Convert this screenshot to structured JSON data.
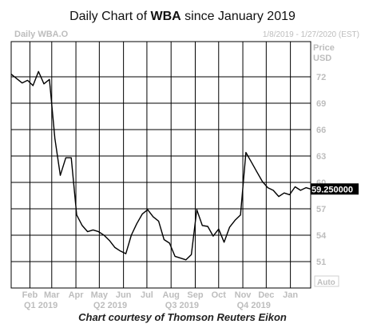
{
  "title": {
    "prefix": "Daily Chart of ",
    "ticker": "WBA",
    "suffix": " since January 2019"
  },
  "caption": "Chart courtesy of Thomson Reuters Eikon",
  "chart_data": {
    "type": "line",
    "header_left": "Daily WBA.O",
    "header_right": "1/8/2019 - 1/27/2020 (EST)",
    "ylabel": "Price",
    "yunit": "USD",
    "scale_mode": "Auto",
    "last_price_label": "59.250000",
    "ylim": [
      48.0,
      76.0
    ],
    "yticks": [
      51,
      54,
      57,
      60,
      63,
      66,
      69,
      72
    ],
    "xlim": [
      "2019-01-08",
      "2020-01-27"
    ],
    "months": [
      {
        "label": "Feb",
        "date": "2019-02-01"
      },
      {
        "label": "Mar",
        "date": "2019-03-01"
      },
      {
        "label": "Apr",
        "date": "2019-04-01"
      },
      {
        "label": "May",
        "date": "2019-05-01"
      },
      {
        "label": "Jun",
        "date": "2019-06-01"
      },
      {
        "label": "Jul",
        "date": "2019-07-01"
      },
      {
        "label": "Aug",
        "date": "2019-08-01"
      },
      {
        "label": "Sep",
        "date": "2019-09-01"
      },
      {
        "label": "Oct",
        "date": "2019-10-01"
      },
      {
        "label": "Nov",
        "date": "2019-11-01"
      },
      {
        "label": "Dec",
        "date": "2019-12-01"
      },
      {
        "label": "Jan",
        "date": "2020-01-01"
      }
    ],
    "quarters": [
      {
        "label": "Q1 2019",
        "date": "2019-02-15"
      },
      {
        "label": "Q2 2019",
        "date": "2019-05-15"
      },
      {
        "label": "Q3 2019",
        "date": "2019-08-15"
      },
      {
        "label": "Q4 2019",
        "date": "2019-11-15"
      }
    ],
    "grid": true,
    "series": [
      {
        "x": [
          "2019-01-08",
          "2019-01-15",
          "2019-01-22",
          "2019-01-29",
          "2019-02-05",
          "2019-02-12",
          "2019-02-19",
          "2019-02-26",
          "2019-03-05",
          "2019-03-12",
          "2019-03-19",
          "2019-03-26",
          "2019-04-02",
          "2019-04-09",
          "2019-04-16",
          "2019-04-23",
          "2019-04-30",
          "2019-05-07",
          "2019-05-14",
          "2019-05-21",
          "2019-05-28",
          "2019-06-04",
          "2019-06-11",
          "2019-06-18",
          "2019-06-25",
          "2019-07-02",
          "2019-07-09",
          "2019-07-16",
          "2019-07-23",
          "2019-07-30",
          "2019-08-06",
          "2019-08-13",
          "2019-08-20",
          "2019-08-27",
          "2019-09-03",
          "2019-09-10",
          "2019-09-17",
          "2019-09-24",
          "2019-10-01",
          "2019-10-08",
          "2019-10-15",
          "2019-10-22",
          "2019-10-29",
          "2019-11-05",
          "2019-11-12",
          "2019-11-19",
          "2019-11-26",
          "2019-12-03",
          "2019-12-10",
          "2019-12-17",
          "2019-12-24",
          "2019-12-31",
          "2020-01-07",
          "2020-01-14",
          "2020-01-21",
          "2020-01-27"
        ],
        "values": [
          72.3,
          71.8,
          71.3,
          71.6,
          71.0,
          72.6,
          71.2,
          71.7,
          65.0,
          60.8,
          62.8,
          62.8,
          56.3,
          55.1,
          54.4,
          54.6,
          54.4,
          54.0,
          53.4,
          52.6,
          52.2,
          51.9,
          54.0,
          55.3,
          56.4,
          56.9,
          56.1,
          55.6,
          53.5,
          53.1,
          51.6,
          51.4,
          51.2,
          51.8,
          56.9,
          55.1,
          55.0,
          53.9,
          54.7,
          53.2,
          54.9,
          55.7,
          56.3,
          63.4,
          62.3,
          61.2,
          60.1,
          59.4,
          59.1,
          58.4,
          58.8,
          58.6,
          59.5,
          59.1,
          59.4,
          59.25
        ]
      }
    ]
  }
}
